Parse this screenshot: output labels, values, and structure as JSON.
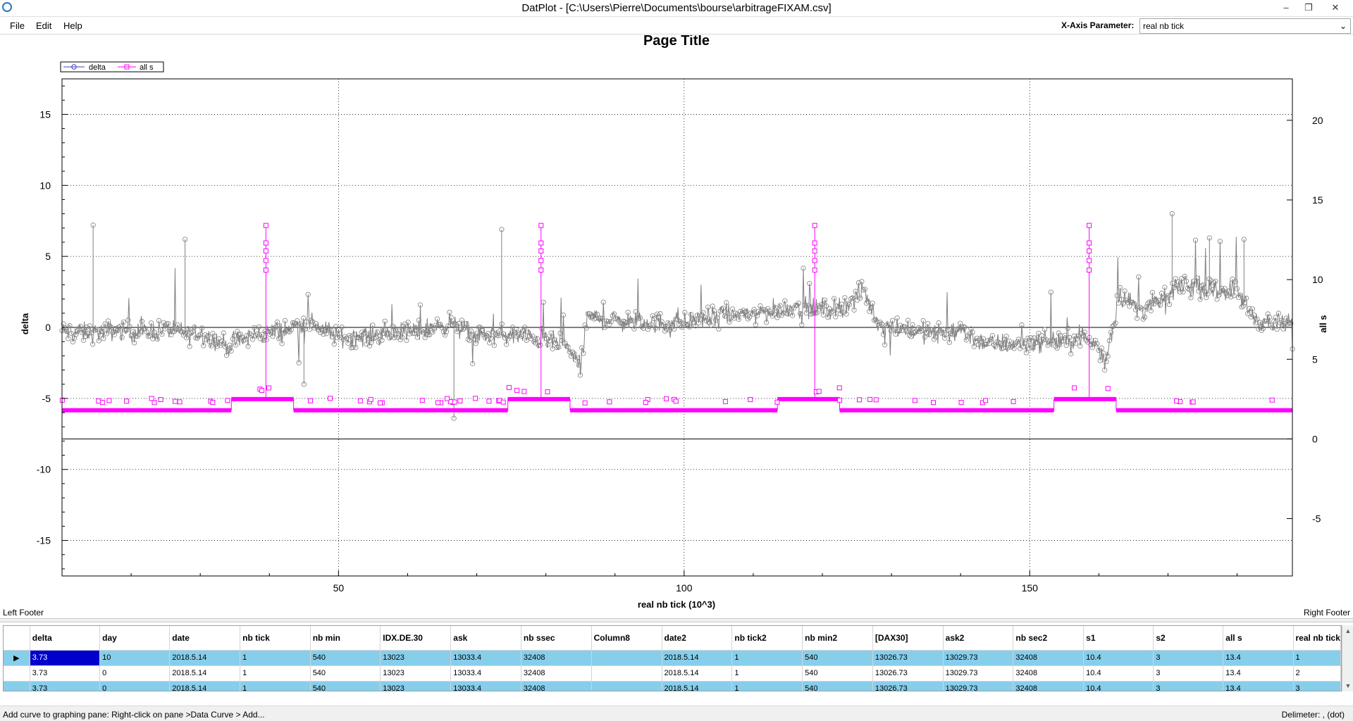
{
  "window": {
    "title": "DatPlot - [C:\\Users\\Pierre\\Documents\\bourse\\arbitrageFIXAM.csv]",
    "minimize_glyph": "–",
    "restore_glyph": "❐",
    "close_glyph": "✕"
  },
  "menu": {
    "file": "File",
    "edit": "Edit",
    "help": "Help"
  },
  "xaxis_param": {
    "label": "X-Axis Parameter:",
    "value": "real nb tick"
  },
  "chart_data": {
    "type": "line",
    "title": "Page Title",
    "xlabel": "real nb tick (10^3)",
    "ylabel": "delta",
    "y2label": "all s",
    "xlim": [
      10,
      188
    ],
    "ylim": [
      -17.5,
      17.5
    ],
    "y2lim": [
      -8.6,
      22.6
    ],
    "x_ticks": [
      50,
      100,
      150
    ],
    "y_ticks": [
      -15,
      -10,
      -5,
      0,
      5,
      10,
      15
    ],
    "y2_ticks": [
      -5,
      0,
      5,
      10,
      15,
      20
    ],
    "grid": true,
    "legend_position": "top-left",
    "colors": {
      "delta": "#808080",
      "all_s": "#ff00ff",
      "legend_delta": "#4040c0"
    },
    "series": [
      {
        "name": "delta",
        "axis": "left",
        "x": [
          10,
          14,
          18,
          22,
          26,
          28,
          30,
          34,
          36,
          38,
          42,
          46,
          50,
          54,
          58,
          62,
          66,
          70,
          74,
          78,
          82,
          84,
          85,
          86,
          88,
          92,
          96,
          100,
          104,
          108,
          112,
          116,
          118,
          120,
          122,
          124,
          126,
          128,
          132,
          136,
          140,
          144,
          148,
          152,
          156,
          158,
          160,
          161,
          163,
          166,
          170,
          172,
          176,
          180,
          182,
          184,
          188
        ],
        "values": [
          -0.3,
          -0.4,
          -0.2,
          -0.3,
          -0.1,
          -0.5,
          -0.4,
          -1.3,
          -0.9,
          -0.5,
          -0.2,
          0.4,
          -0.7,
          -0.6,
          -0.4,
          -0.2,
          0.3,
          -0.6,
          -0.5,
          -0.7,
          -1.1,
          -1.9,
          -2.9,
          0.8,
          0.6,
          0.4,
          0.3,
          0.4,
          0.7,
          0.9,
          1.1,
          1.5,
          1.3,
          1.3,
          1.4,
          1.7,
          2.6,
          0.3,
          -0.1,
          -0.4,
          -0.3,
          -1.2,
          -1.1,
          -1.0,
          -0.9,
          -0.7,
          -1.4,
          -2.4,
          2.4,
          1.2,
          2.1,
          3.1,
          2.6,
          2.7,
          0.9,
          0.3,
          0.2
        ]
      },
      {
        "name": "all s",
        "axis": "right",
        "steps": [
          {
            "x0": 10,
            "x1": 34.5,
            "y": 1.8
          },
          {
            "x0": 34.5,
            "x1": 43.5,
            "y": 2.5
          },
          {
            "x0": 43.5,
            "x1": 74.5,
            "y": 1.8
          },
          {
            "x0": 74.5,
            "x1": 83.5,
            "y": 2.5
          },
          {
            "x0": 83.5,
            "x1": 113.5,
            "y": 1.8
          },
          {
            "x0": 113.5,
            "x1": 122.5,
            "y": 2.5
          },
          {
            "x0": 122.5,
            "x1": 153.5,
            "y": 1.8
          },
          {
            "x0": 153.5,
            "x1": 162.5,
            "y": 2.5
          },
          {
            "x0": 162.5,
            "x1": 188,
            "y": 1.8
          }
        ],
        "spikes": [
          {
            "x": 39.5,
            "y": 13.4
          },
          {
            "x": 79.3,
            "y": 13.4
          },
          {
            "x": 118.9,
            "y": 13.4
          },
          {
            "x": 158.6,
            "y": 13.4
          }
        ]
      }
    ]
  },
  "footer": {
    "left": "Left Footer",
    "right": "Right Footer"
  },
  "grid": {
    "columns": [
      "delta",
      "day",
      "date",
      "nb tick",
      "nb min",
      "IDX.DE.30",
      "ask",
      "nb ssec",
      "Column8",
      "date2",
      "nb tick2",
      "nb min2",
      "[DAX30]",
      "ask2",
      "nb sec2",
      "s1",
      "s2",
      "all s",
      "real nb tick"
    ],
    "rows": [
      [
        "3.73",
        "10",
        "2018.5.14",
        "1",
        "540",
        "13023",
        "13033.4",
        "32408",
        "",
        "2018.5.14",
        "1",
        "540",
        "13026.73",
        "13029.73",
        "32408",
        "10.4",
        "3",
        "13.4",
        "1"
      ],
      [
        "3.73",
        "0",
        "2018.5.14",
        "1",
        "540",
        "13023",
        "13033.4",
        "32408",
        "",
        "2018.5.14",
        "1",
        "540",
        "13026.73",
        "13029.73",
        "32408",
        "10.4",
        "3",
        "13.4",
        "2"
      ],
      [
        "3.73",
        "0",
        "2018.5.14",
        "1",
        "540",
        "13023",
        "13033.4",
        "32408",
        "",
        "2018.5.14",
        "1",
        "540",
        "13026.73",
        "13029.73",
        "32408",
        "10.4",
        "3",
        "13.4",
        "3"
      ]
    ],
    "current_row_marker": "▶"
  },
  "status": {
    "left": "Add curve to graphing pane: Right-click on pane >Data Curve > Add...",
    "right": "Delimeter: , (dot)"
  }
}
